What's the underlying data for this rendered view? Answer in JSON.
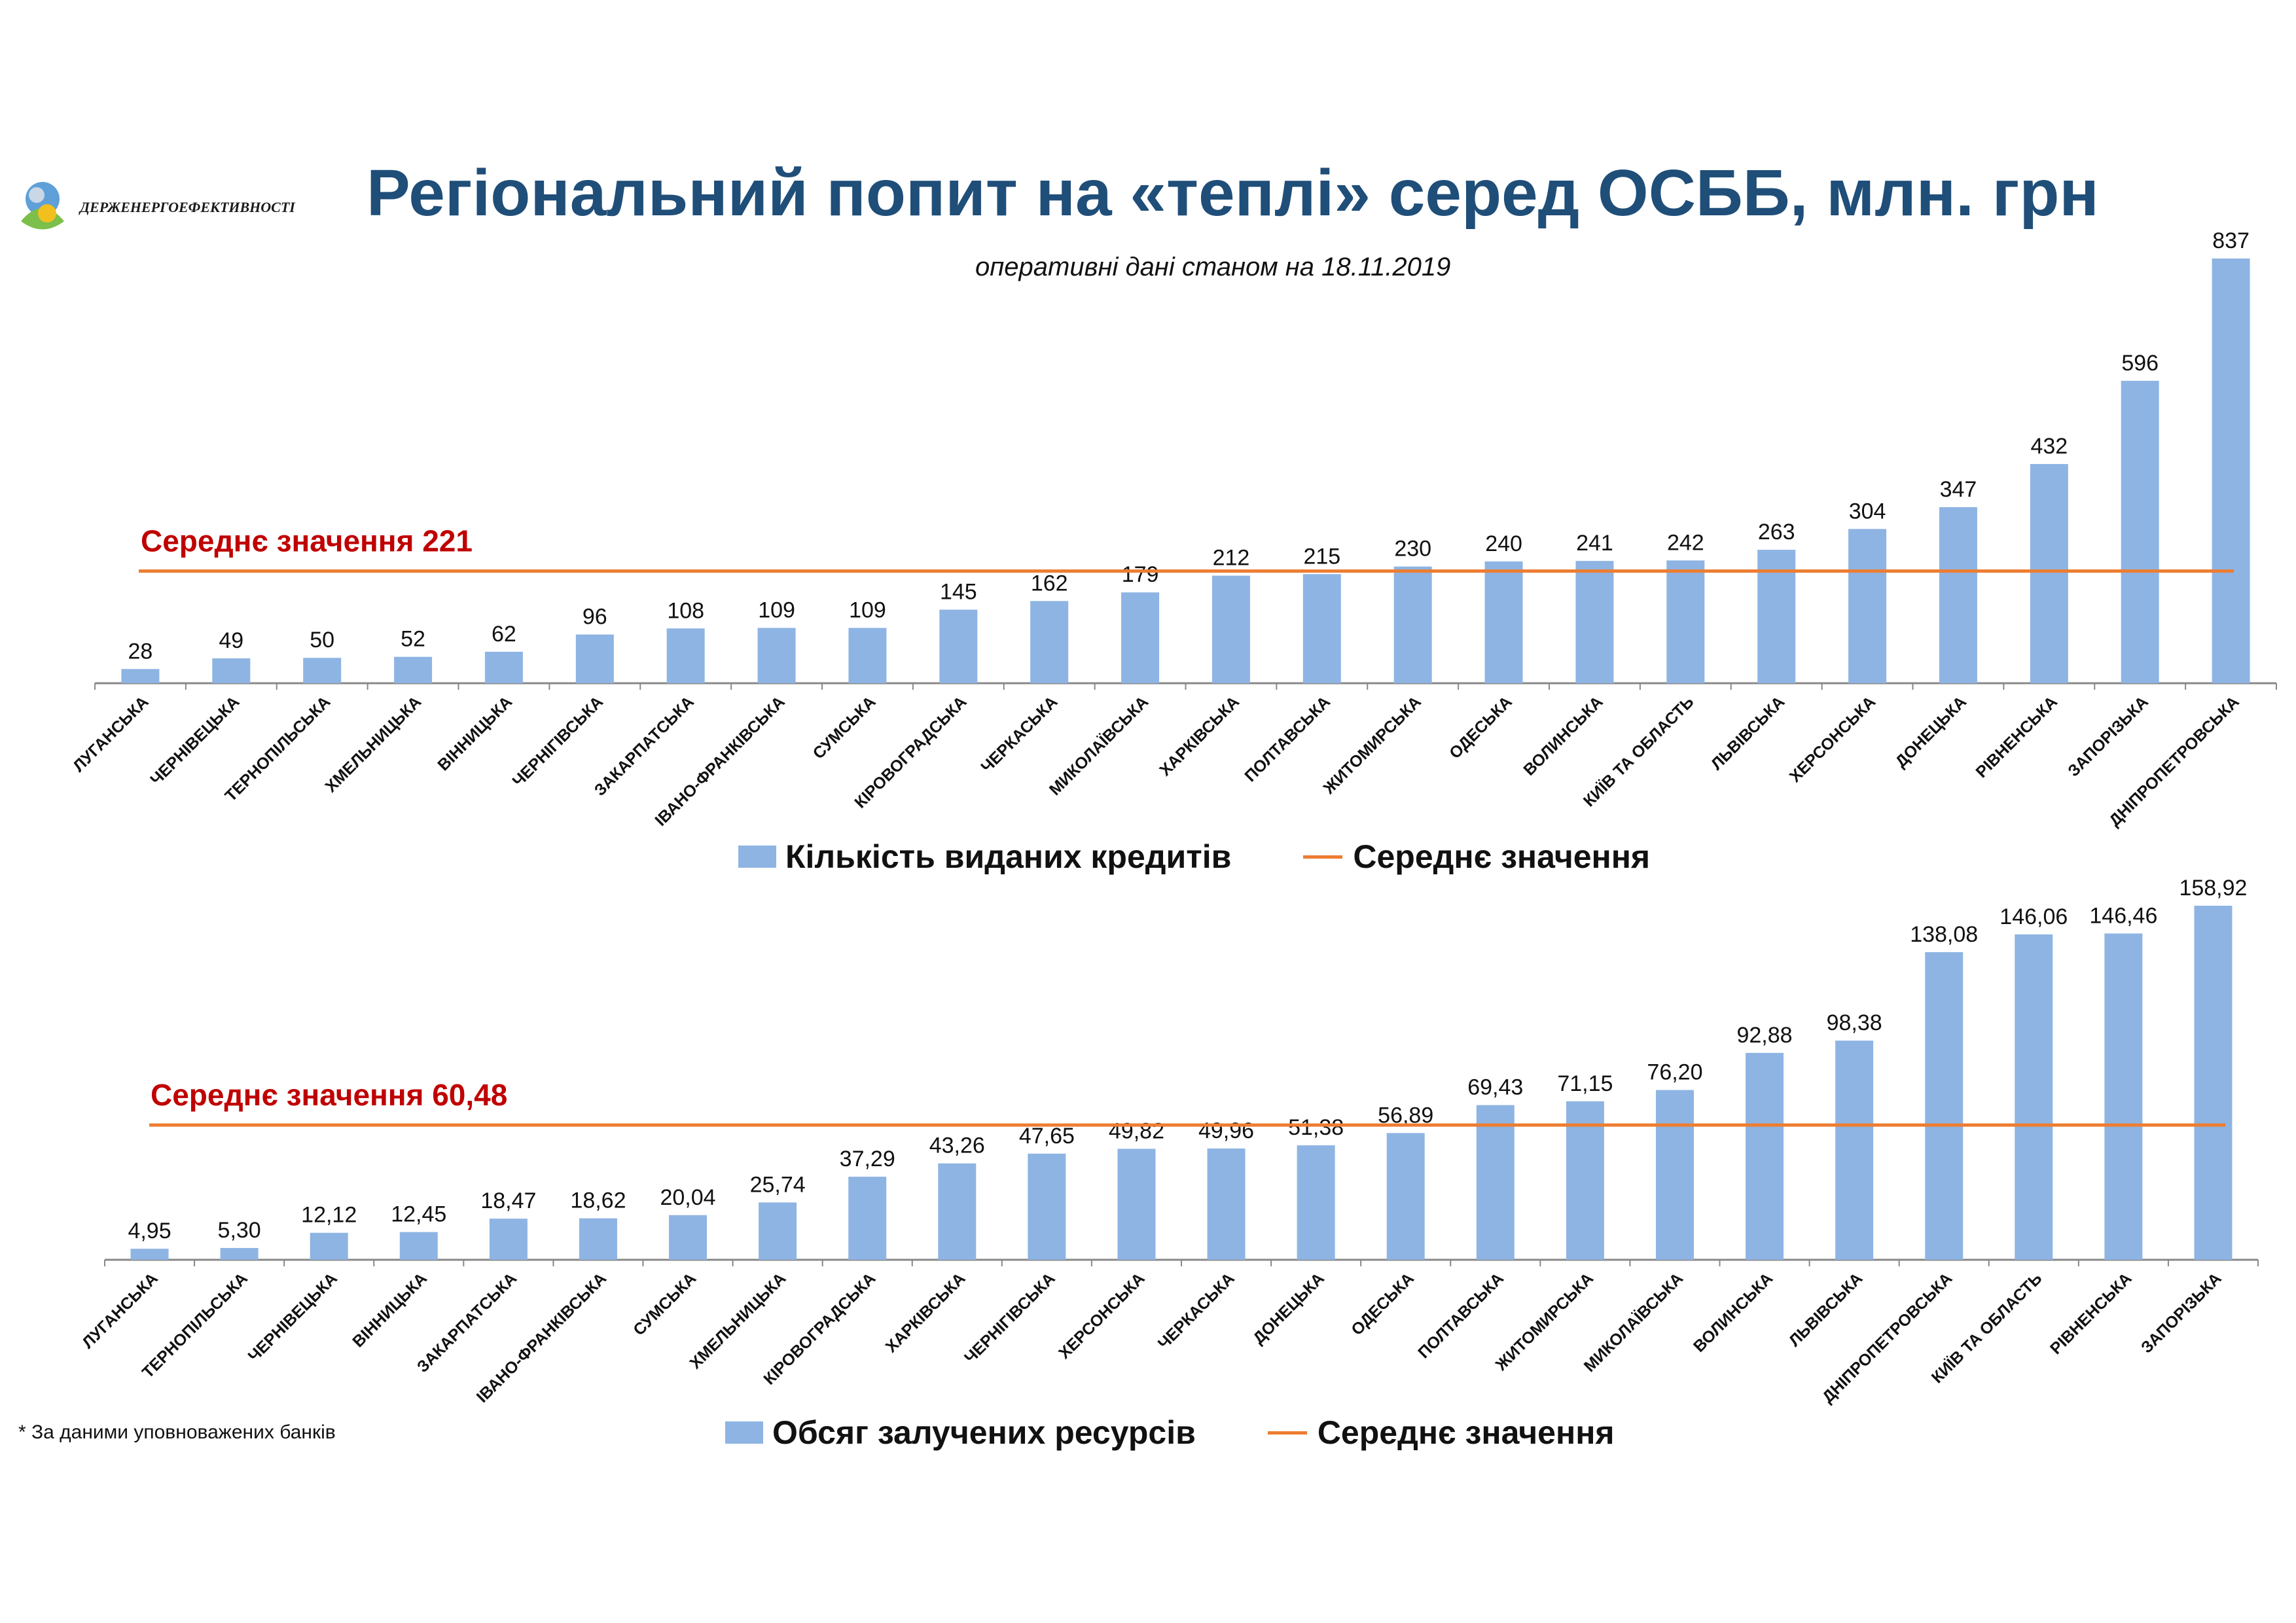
{
  "header": {
    "logo_text": "ДЕРЖЕНЕРГОЕФЕКТИВНОСТІ",
    "title": "Регіональний попит на «теплі» серед ОСББ, млн. грн",
    "subtitle": "оперативні дані станом на 18.11.2019"
  },
  "footnote": "* За даними уповноважених банків",
  "colors": {
    "bar": "#8eb4e3",
    "avg_line": "#ed7d31",
    "avg_label": "#c00000",
    "title": "#1f4e79"
  },
  "chart_data": [
    {
      "type": "bar",
      "categories": [
        "ЛУГАНСЬКА",
        "ЧЕРНІВЕЦЬКА",
        "ТЕРНОПІЛЬСЬКА",
        "ХМЕЛЬНИЦЬКА",
        "ВІННИЦЬКА",
        "ЧЕРНІГІВСЬКА",
        "ЗАКАРПАТСЬКА",
        "ІВАНО-ФРАНКІВСЬКА",
        "СУМСЬКА",
        "КІРОВОГРАДСЬКА",
        "ЧЕРКАСЬКА",
        "МИКОЛАЇВСЬКА",
        "ХАРКІВСЬКА",
        "ПОЛТАВСЬКА",
        "ЖИТОМИРСЬКА",
        "ОДЕСЬКА",
        "ВОЛИНСЬКА",
        "КИЇВ ТА ОБЛАСТЬ",
        "ЛЬВІВСЬКА",
        "ХЕРСОНСЬКА",
        "ДОНЕЦЬКА",
        "РІВНЕНСЬКА",
        "ЗАПОРІЗЬКА",
        "ДНІПРОПЕТРОВСЬКА"
      ],
      "values": [
        28,
        49,
        50,
        52,
        62,
        96,
        108,
        109,
        109,
        145,
        162,
        179,
        212,
        215,
        230,
        240,
        241,
        242,
        263,
        304,
        347,
        432,
        596,
        837
      ],
      "value_labels": [
        "28",
        "49",
        "50",
        "52",
        "62",
        "96",
        "108",
        "109",
        "109",
        "145",
        "162",
        "179",
        "212",
        "215",
        "230",
        "240",
        "241",
        "242",
        "263",
        "304",
        "347",
        "432",
        "596",
        "837"
      ],
      "average": 221,
      "average_label": "Середнє значення 221",
      "legend": {
        "bar": "Кількість виданих кредитів",
        "line": "Середнє значення"
      },
      "ylim": [
        0,
        837
      ]
    },
    {
      "type": "bar",
      "categories": [
        "ЛУГАНСЬКА",
        "ТЕРНОПІЛЬСЬКА",
        "ЧЕРНІВЕЦЬКА",
        "ВІННИЦЬКА",
        "ЗАКАРПАТСЬКА",
        "ІВАНО-ФРАНКІВСЬКА",
        "СУМСЬКА",
        "ХМЕЛЬНИЦЬКА",
        "КІРОВОГРАДСЬКА",
        "ХАРКІВСЬКА",
        "ЧЕРНІГІВСЬКА",
        "ХЕРСОНСЬКА",
        "ЧЕРКАСЬКА",
        "ДОНЕЦЬКА",
        "ОДЕСЬКА",
        "ПОЛТАВСЬКА",
        "ЖИТОМИРСЬКА",
        "МИКОЛАЇВСЬКА",
        "ВОЛИНСЬКА",
        "ЛЬВІВСЬКА",
        "ДНІПРОПЕТРОВСЬКА",
        "КИЇВ ТА ОБЛАСТЬ",
        "РІВНЕНСЬКА",
        "ЗАПОРІЗЬКА"
      ],
      "values": [
        4.95,
        5.3,
        12.12,
        12.45,
        18.47,
        18.62,
        20.04,
        25.74,
        37.29,
        43.26,
        47.65,
        49.82,
        49.96,
        51.38,
        56.89,
        69.43,
        71.15,
        76.2,
        92.88,
        98.38,
        138.08,
        146.06,
        146.46,
        158.92
      ],
      "value_labels": [
        "4,95",
        "5,30",
        "12,12",
        "12,45",
        "18,47",
        "18,62",
        "20,04",
        "25,74",
        "37,29",
        "43,26",
        "47,65",
        "49,82",
        "49,96",
        "51,38",
        "56,89",
        "69,43",
        "71,15",
        "76,20",
        "92,88",
        "98,38",
        "138,08",
        "146,06",
        "146,46",
        "158,92"
      ],
      "average": 60.48,
      "average_label": "Середнє значення  60,48",
      "legend": {
        "bar": "Обсяг залучених ресурсів",
        "line": "Середнє значення"
      },
      "ylim": [
        0,
        158.92
      ]
    }
  ]
}
